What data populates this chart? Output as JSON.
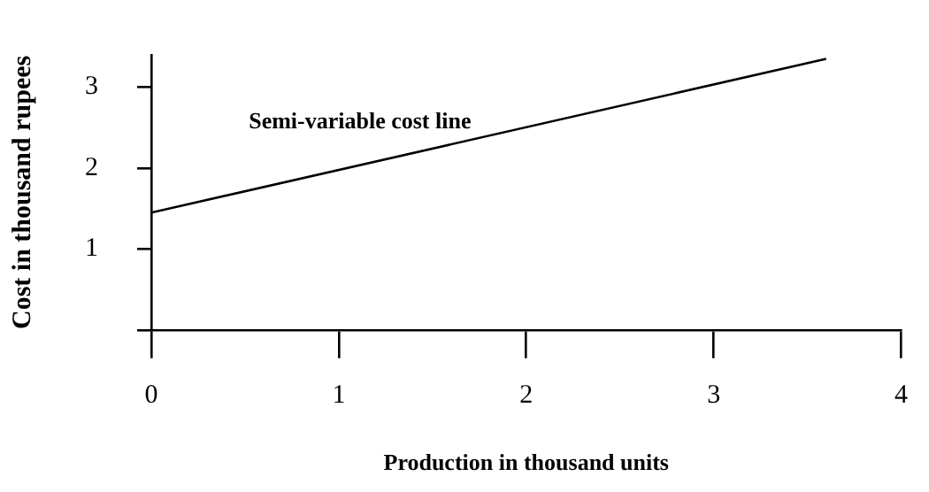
{
  "chart_data": {
    "type": "line",
    "xlabel": "Production in thousand units",
    "ylabel": "Cost in thousand rupees",
    "x": [
      0,
      3.6
    ],
    "series": [
      {
        "color": "#000000",
        "values": [
          1.45,
          3.35
        ]
      }
    ],
    "xlim": [
      0,
      4
    ],
    "xticks": [
      0,
      1,
      2,
      3,
      4
    ],
    "ylim": [
      0,
      3.4
    ],
    "yticks": [
      {
        "value": 0,
        "label": null
      },
      1,
      2,
      3
    ],
    "annotations": [
      "Semi-variable cost line"
    ],
    "grid": false,
    "legend": false,
    "marker": "none",
    "line_style": "solid"
  }
}
